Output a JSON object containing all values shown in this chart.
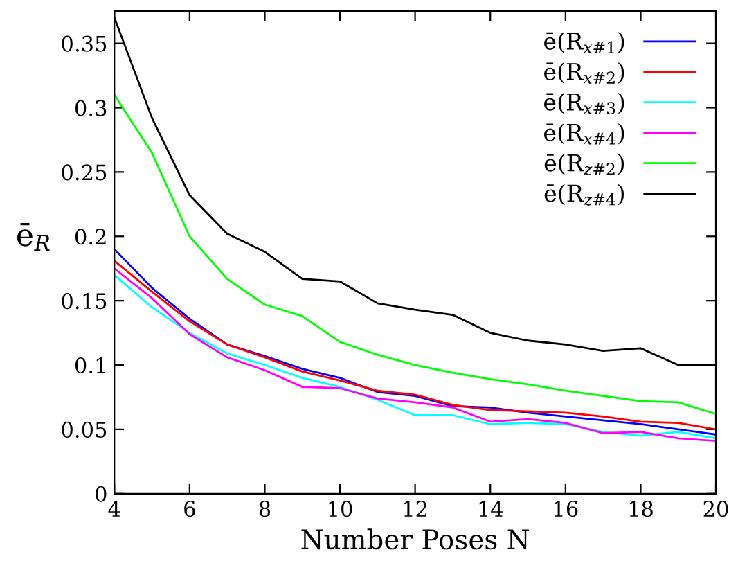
{
  "chart_data": {
    "type": "line",
    "xlabel": "Number Poses N",
    "ylabel": "ē$_{R}$",
    "x": [
      4,
      5,
      6,
      7,
      8,
      9,
      10,
      11,
      12,
      13,
      14,
      15,
      16,
      17,
      18,
      19,
      20
    ],
    "series": [
      {
        "name": "ē(R$_{x#1}$)",
        "color": "#0000ff",
        "values": [
          0.19,
          0.16,
          0.136,
          0.116,
          0.107,
          0.097,
          0.09,
          0.079,
          0.076,
          0.068,
          0.067,
          0.063,
          0.06,
          0.057,
          0.054,
          0.05,
          0.046
        ]
      },
      {
        "name": "ē(R$_{x#2}$)",
        "color": "#ff0000",
        "values": [
          0.181,
          0.157,
          0.134,
          0.116,
          0.106,
          0.095,
          0.088,
          0.08,
          0.077,
          0.069,
          0.065,
          0.064,
          0.063,
          0.06,
          0.056,
          0.055,
          0.05
        ]
      },
      {
        "name": "ē(R$_{x#3}$)",
        "color": "#00ffff",
        "values": [
          0.17,
          0.145,
          0.125,
          0.109,
          0.1,
          0.09,
          0.083,
          0.073,
          0.061,
          0.061,
          0.054,
          0.055,
          0.054,
          0.048,
          0.045,
          0.048,
          0.043
        ]
      },
      {
        "name": "ē(R$_{x#4}$)",
        "color": "#ff00ff",
        "values": [
          0.175,
          0.152,
          0.124,
          0.106,
          0.096,
          0.083,
          0.082,
          0.074,
          0.071,
          0.067,
          0.056,
          0.058,
          0.055,
          0.047,
          0.048,
          0.043,
          0.041
        ]
      },
      {
        "name": "ē(R$_{z#2}$)",
        "color": "#00ff00",
        "values": [
          0.31,
          0.265,
          0.2,
          0.167,
          0.147,
          0.138,
          0.118,
          0.108,
          0.1,
          0.094,
          0.089,
          0.085,
          0.08,
          0.076,
          0.072,
          0.071,
          0.062
        ]
      },
      {
        "name": "ē(R$_{z#4}$)",
        "color": "#000000",
        "values": [
          0.37,
          0.292,
          0.232,
          0.202,
          0.188,
          0.167,
          0.165,
          0.148,
          0.143,
          0.139,
          0.125,
          0.119,
          0.116,
          0.111,
          0.113,
          0.1,
          0.1
        ]
      }
    ],
    "xlim": [
      4,
      20
    ],
    "xticks": [
      4,
      6,
      8,
      10,
      12,
      14,
      16,
      18,
      20
    ],
    "ylim": [
      0,
      0.375
    ],
    "yticks": [
      0,
      0.05,
      0.1,
      0.15,
      0.2,
      0.25,
      0.3,
      0.35
    ],
    "grid": false,
    "legend": "top right",
    "marker": "none",
    "line_style": "solid"
  }
}
